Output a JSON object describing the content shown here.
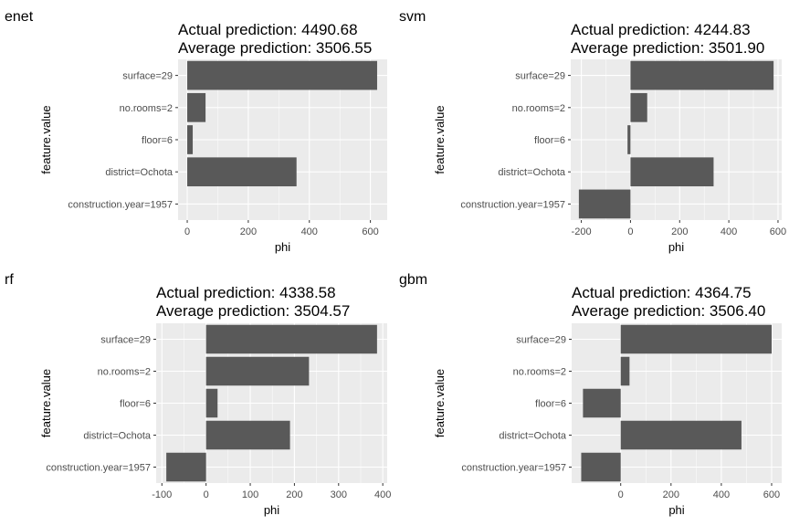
{
  "chart_data": [
    {
      "type": "bar",
      "tag": "enet",
      "title_line1": "Actual prediction: 4490.68",
      "title_line2": "Average prediction: 3506.55",
      "xlabel": "phi",
      "ylabel": "feature.value",
      "categories": [
        "surface=29",
        "no.rooms=2",
        "floor=6",
        "district=Ochota",
        "construction.year=1957"
      ],
      "values": [
        622,
        60,
        18,
        358,
        0
      ],
      "xlim": [
        -30,
        655
      ],
      "xticks": [
        0,
        200,
        400,
        600
      ],
      "xtick_labels": [
        "0",
        "200",
        "400",
        "600"
      ],
      "colors": {
        "bar": "#595959",
        "panel": "#ebebeb",
        "grid": "#ffffff"
      }
    },
    {
      "type": "bar",
      "tag": "svm",
      "title_line1": "Actual prediction: 4244.83",
      "title_line2": "Average prediction: 3501.90",
      "xlabel": "phi",
      "ylabel": "feature.value",
      "categories": [
        "surface=29",
        "no.rooms=2",
        "floor=6",
        "district=Ochota",
        "construction.year=1957"
      ],
      "values": [
        582,
        68,
        -12,
        338,
        -210
      ],
      "xlim": [
        -243,
        615
      ],
      "xticks": [
        -200,
        0,
        200,
        400,
        600
      ],
      "xtick_labels": [
        "-200",
        "0",
        "200",
        "400",
        "600"
      ],
      "colors": {
        "bar": "#595959",
        "panel": "#ebebeb",
        "grid": "#ffffff"
      }
    },
    {
      "type": "bar",
      "tag": "rf",
      "title_line1": "Actual prediction: 4338.58",
      "title_line2": "Average prediction: 3504.57",
      "xlabel": "phi",
      "ylabel": "feature.value",
      "categories": [
        "surface=29",
        "no.rooms=2",
        "floor=6",
        "district=Ochota",
        "construction.year=1957"
      ],
      "values": [
        387,
        233,
        26,
        190,
        -90
      ],
      "xlim": [
        -113,
        410
      ],
      "xticks": [
        -100,
        0,
        100,
        200,
        300,
        400
      ],
      "xtick_labels": [
        "-100",
        "0",
        "100",
        "200",
        "300",
        "400"
      ],
      "colors": {
        "bar": "#595959",
        "panel": "#ebebeb",
        "grid": "#ffffff"
      }
    },
    {
      "type": "bar",
      "tag": "gbm",
      "title_line1": "Actual prediction: 4364.75",
      "title_line2": "Average prediction: 3506.40",
      "xlabel": "phi",
      "ylabel": "feature.value",
      "categories": [
        "surface=29",
        "no.rooms=2",
        "floor=6",
        "district=Ochota",
        "construction.year=1957"
      ],
      "values": [
        600,
        35,
        -150,
        480,
        -157
      ],
      "xlim": [
        -195,
        640
      ],
      "xticks": [
        0,
        200,
        400,
        600
      ],
      "xtick_labels": [
        "0",
        "200",
        "400",
        "600"
      ],
      "colors": {
        "bar": "#595959",
        "panel": "#ebebeb",
        "grid": "#ffffff"
      }
    }
  ]
}
